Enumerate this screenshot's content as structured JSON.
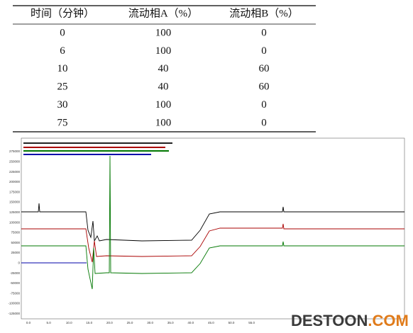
{
  "table": {
    "header": [
      "时间（分钟）",
      "流动相A（%）",
      "流动相B（%）"
    ],
    "rows": [
      [
        "0",
        "100",
        "0"
      ],
      [
        "6",
        "100",
        "0"
      ],
      [
        "10",
        "40",
        "60"
      ],
      [
        "25",
        "40",
        "60"
      ],
      [
        "30",
        "100",
        "0"
      ],
      [
        "75",
        "100",
        "0"
      ]
    ]
  },
  "chromatogram": {
    "yticks": [
      "275000",
      "250000",
      "225000",
      "200000",
      "175000",
      "150000",
      "125000",
      "100000",
      "75000",
      "50000",
      "25000",
      "0",
      "-25000",
      "-50000",
      "-75000",
      "-100000",
      "-125000"
    ],
    "xticks": [
      "0.0",
      "5.0",
      "10.0",
      "15.0",
      "20.0",
      "25.0",
      "30.0",
      "35.0",
      "40.0",
      "45.0",
      "50.0",
      "55.0"
    ]
  },
  "watermark": {
    "part1": "DESTOON",
    "part2": ".COM"
  }
}
